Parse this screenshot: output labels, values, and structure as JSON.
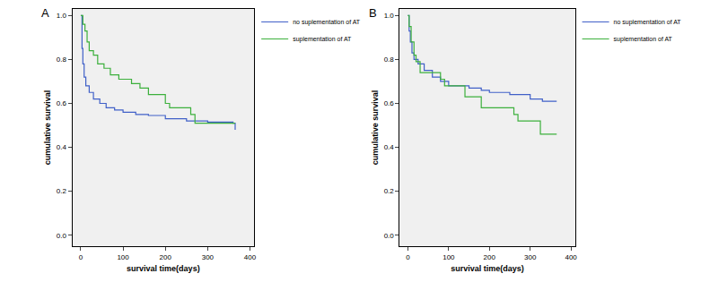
{
  "chart_data": [
    {
      "type": "line",
      "title": "A",
      "line_style": "step",
      "legend": "right",
      "grid": false,
      "x_label": "survival time(days)",
      "y_label": "cumulative survival",
      "xlim": [
        -20,
        410
      ],
      "xticks": [
        0,
        100,
        200,
        300,
        400
      ],
      "ylim": [
        -0.05,
        1.03
      ],
      "yticks": [
        {
          "value": 0,
          "label": "0.0"
        },
        {
          "value": 0.2,
          "label": "0.2"
        },
        {
          "value": 0.4,
          "label": "0.4"
        },
        {
          "value": 0.6,
          "label": "0.6"
        },
        {
          "value": 0.8,
          "label": "0.8"
        },
        {
          "value": 1,
          "label": "1.0"
        }
      ],
      "series": [
        {
          "name": "no suplementation of AT",
          "color": "#4060c8",
          "x": [
            0,
            3,
            5,
            8,
            12,
            20,
            30,
            45,
            60,
            80,
            100,
            130,
            160,
            200,
            250,
            300,
            360,
            365
          ],
          "values": [
            1.0,
            0.85,
            0.78,
            0.72,
            0.68,
            0.65,
            0.62,
            0.6,
            0.58,
            0.57,
            0.56,
            0.55,
            0.545,
            0.53,
            0.52,
            0.515,
            0.51,
            0.48
          ]
        },
        {
          "name": "suplementation of AT",
          "color": "#3cb03c",
          "x": [
            0,
            5,
            10,
            15,
            20,
            30,
            40,
            55,
            70,
            90,
            120,
            140,
            160,
            200,
            210,
            260,
            270,
            365
          ],
          "values": [
            1.0,
            0.96,
            0.93,
            0.88,
            0.84,
            0.82,
            0.78,
            0.76,
            0.73,
            0.71,
            0.69,
            0.67,
            0.64,
            0.6,
            0.58,
            0.55,
            0.51,
            0.51
          ]
        }
      ]
    },
    {
      "type": "line",
      "title": "B",
      "line_style": "step",
      "legend": "right",
      "grid": false,
      "x_label": "survival time(days)",
      "y_label": "cumulative survival",
      "xlim": [
        -20,
        410
      ],
      "xticks": [
        0,
        100,
        200,
        300,
        400
      ],
      "ylim": [
        -0.05,
        1.03
      ],
      "yticks": [
        {
          "value": 0,
          "label": "0.0"
        },
        {
          "value": 0.2,
          "label": "0.2"
        },
        {
          "value": 0.4,
          "label": "0.4"
        },
        {
          "value": 0.6,
          "label": "0.6"
        },
        {
          "value": 0.8,
          "label": "0.8"
        },
        {
          "value": 1,
          "label": "1.0"
        }
      ],
      "series": [
        {
          "name": "no suplementation of AT",
          "color": "#4060c8",
          "x": [
            0,
            3,
            6,
            10,
            15,
            25,
            40,
            60,
            80,
            100,
            150,
            180,
            200,
            250,
            300,
            330,
            365
          ],
          "values": [
            1.0,
            0.93,
            0.88,
            0.83,
            0.8,
            0.78,
            0.75,
            0.72,
            0.7,
            0.68,
            0.67,
            0.66,
            0.65,
            0.64,
            0.62,
            0.61,
            0.61
          ]
        },
        {
          "name": "suplementation of AT",
          "color": "#3cb03c",
          "x": [
            0,
            3,
            8,
            15,
            20,
            30,
            60,
            80,
            90,
            130,
            140,
            180,
            230,
            260,
            270,
            320,
            325,
            365
          ],
          "values": [
            1.0,
            0.95,
            0.88,
            0.82,
            0.79,
            0.74,
            0.74,
            0.71,
            0.68,
            0.68,
            0.63,
            0.58,
            0.58,
            0.55,
            0.52,
            0.52,
            0.46,
            0.46
          ]
        }
      ]
    }
  ]
}
